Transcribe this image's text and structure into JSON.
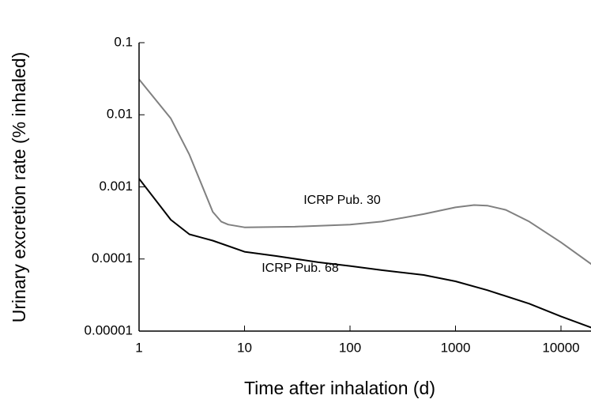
{
  "chart_data": {
    "type": "line",
    "x_label": "Time after inhalation (d)",
    "y_label": "Urinary excretion rate (% inhaled)",
    "xscale": "log",
    "yscale": "log",
    "xlim": [
      1,
      20000
    ],
    "ylim": [
      1e-05,
      0.1
    ],
    "xticks": [
      1,
      10,
      100,
      1000,
      10000
    ],
    "yticks": [
      0.1,
      0.01,
      0.001,
      0.0001,
      1e-05
    ],
    "series": [
      {
        "name": "ICRP Pub. 30",
        "color": "#808080",
        "x": [
          1,
          2,
          3,
          5,
          6,
          7,
          10,
          30,
          100,
          200,
          500,
          1000,
          1500,
          2000,
          3000,
          5000,
          10000,
          20000
        ],
        "values": [
          0.031,
          0.0089,
          0.0028,
          0.00045,
          0.00033,
          0.0003,
          0.000275,
          0.00028,
          0.0003,
          0.00033,
          0.00042,
          0.00052,
          0.00056,
          0.00055,
          0.00048,
          0.00033,
          0.00017,
          8.2e-05
        ]
      },
      {
        "name": "ICRP Pub. 68",
        "color": "#000000",
        "x": [
          1,
          2,
          3,
          5,
          10,
          20,
          50,
          100,
          200,
          500,
          1000,
          2000,
          5000,
          10000,
          20000
        ],
        "values": [
          0.0013,
          0.00035,
          0.00022,
          0.00018,
          0.000126,
          0.00011,
          9e-05,
          8e-05,
          7e-05,
          6e-05,
          4.9e-05,
          3.7e-05,
          2.4e-05,
          1.6e-05,
          1.1e-05
        ]
      }
    ]
  }
}
